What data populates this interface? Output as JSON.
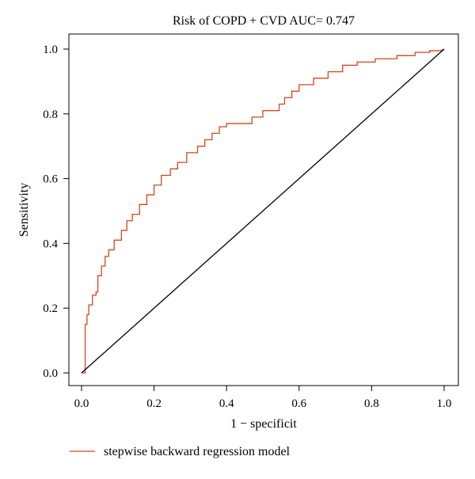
{
  "chart_data": {
    "type": "line",
    "title": "Risk of COPD + CVD AUC= 0.747",
    "xlabel": "1 − specificit",
    "ylabel": "Sensitivity",
    "xlim": [
      0.0,
      1.0
    ],
    "ylim": [
      0.0,
      1.0
    ],
    "x_ticks": [
      0.0,
      0.2,
      0.4,
      0.6,
      0.8,
      1.0
    ],
    "y_ticks": [
      0.0,
      0.2,
      0.4,
      0.6,
      0.8,
      1.0
    ],
    "x_tick_labels": [
      "0.0",
      "0.2",
      "0.4",
      "0.6",
      "0.8",
      "1.0"
    ],
    "y_tick_labels": [
      "0.0",
      "0.2",
      "0.4",
      "0.6",
      "0.8",
      "1.0"
    ],
    "grid": false,
    "legend_position": "bottom-left, outside plot",
    "series": [
      {
        "name": "stepwise backward regression model",
        "color": "#d2471f",
        "x": [
          0.0,
          0.01,
          0.01,
          0.015,
          0.015,
          0.02,
          0.02,
          0.03,
          0.03,
          0.04,
          0.04,
          0.045,
          0.045,
          0.055,
          0.055,
          0.065,
          0.065,
          0.075,
          0.075,
          0.09,
          0.09,
          0.11,
          0.11,
          0.125,
          0.125,
          0.14,
          0.14,
          0.16,
          0.16,
          0.18,
          0.18,
          0.2,
          0.2,
          0.22,
          0.22,
          0.245,
          0.245,
          0.265,
          0.265,
          0.29,
          0.29,
          0.32,
          0.32,
          0.34,
          0.34,
          0.36,
          0.36,
          0.38,
          0.38,
          0.4,
          0.4,
          0.47,
          0.47,
          0.5,
          0.5,
          0.545,
          0.545,
          0.56,
          0.56,
          0.58,
          0.58,
          0.6,
          0.6,
          0.64,
          0.64,
          0.68,
          0.68,
          0.72,
          0.72,
          0.76,
          0.76,
          0.81,
          0.81,
          0.87,
          0.87,
          0.92,
          0.92,
          0.96,
          0.96,
          0.99,
          1.0
        ],
        "y": [
          0.0,
          0.0,
          0.15,
          0.15,
          0.18,
          0.18,
          0.21,
          0.21,
          0.24,
          0.24,
          0.25,
          0.25,
          0.3,
          0.3,
          0.33,
          0.33,
          0.36,
          0.36,
          0.38,
          0.38,
          0.41,
          0.41,
          0.44,
          0.44,
          0.47,
          0.47,
          0.49,
          0.49,
          0.52,
          0.52,
          0.55,
          0.55,
          0.58,
          0.58,
          0.61,
          0.61,
          0.63,
          0.63,
          0.65,
          0.65,
          0.68,
          0.68,
          0.7,
          0.7,
          0.72,
          0.72,
          0.74,
          0.74,
          0.76,
          0.76,
          0.77,
          0.77,
          0.79,
          0.79,
          0.81,
          0.81,
          0.83,
          0.83,
          0.85,
          0.85,
          0.87,
          0.87,
          0.89,
          0.89,
          0.91,
          0.91,
          0.93,
          0.93,
          0.95,
          0.95,
          0.96,
          0.96,
          0.97,
          0.97,
          0.98,
          0.98,
          0.99,
          0.99,
          0.995,
          0.995,
          1.0
        ]
      },
      {
        "name": "",
        "color": "#000000",
        "x": [
          0.0,
          1.0
        ],
        "y": [
          0.0,
          1.0
        ]
      }
    ]
  }
}
